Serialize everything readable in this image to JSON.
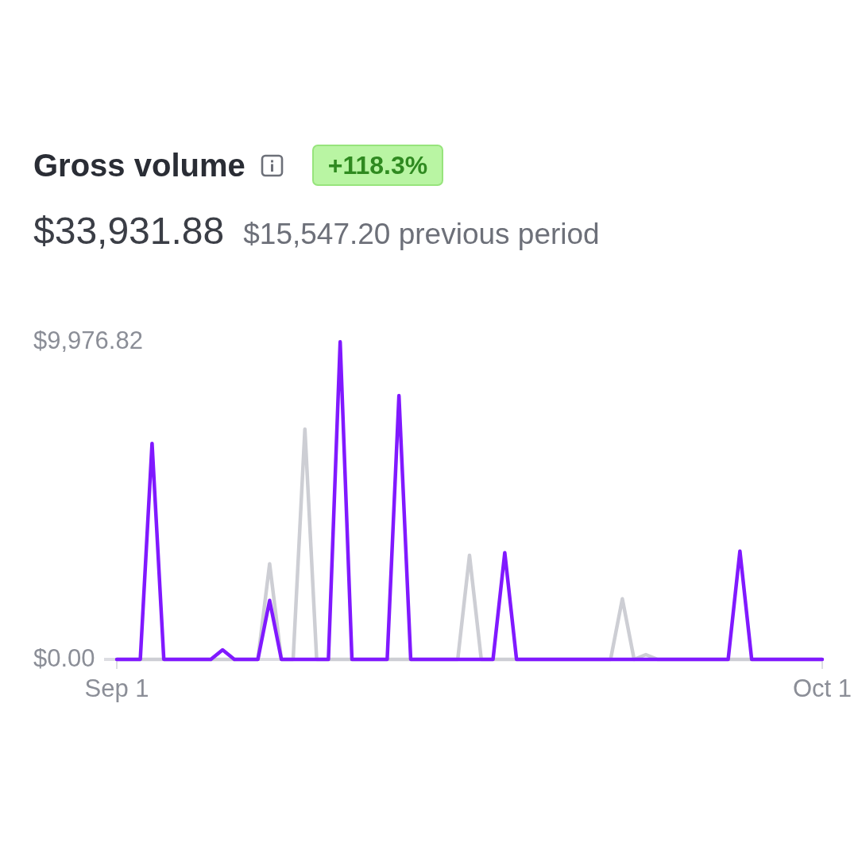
{
  "chart_data": {
    "type": "line",
    "title": "Gross volume",
    "subtitle": "$33,931.88",
    "annotations": [
      "+118.3%",
      "$15,547.20 previous period"
    ],
    "categories": [
      "Sep 1",
      null,
      null,
      null,
      null,
      null,
      null,
      null,
      null,
      null,
      null,
      null,
      null,
      null,
      null,
      null,
      null,
      null,
      null,
      null,
      null,
      null,
      null,
      null,
      null,
      null,
      null,
      null,
      null,
      null,
      null,
      null,
      null,
      null,
      null,
      null,
      null,
      null,
      null,
      null,
      null,
      null,
      null,
      null,
      null,
      null,
      null,
      null,
      null,
      null,
      null,
      null,
      null,
      null,
      null,
      null,
      null,
      null,
      null,
      null,
      "Oct 1"
    ],
    "series": [
      {
        "color": "#8019ff",
        "values": [
          0,
          0,
          0,
          6780,
          0,
          0,
          0,
          0,
          0,
          300,
          0,
          0,
          0,
          1850,
          0,
          0,
          0,
          0,
          0,
          9970,
          0,
          0,
          0,
          0,
          8280,
          0,
          0,
          0,
          0,
          0,
          0,
          0,
          0,
          3350,
          0,
          0,
          0,
          0,
          0,
          0,
          0,
          0,
          0,
          0,
          0,
          0,
          0,
          0,
          0,
          0,
          0,
          0,
          0,
          3400,
          0,
          0,
          0,
          0,
          0,
          0,
          0
        ]
      },
      {
        "color": "#cdced4",
        "values": [
          0,
          0,
          0,
          0,
          0,
          0,
          0,
          0,
          0,
          0,
          0,
          0,
          0,
          3000,
          0,
          0,
          7230,
          0,
          0,
          0,
          0,
          0,
          0,
          0,
          0,
          0,
          0,
          0,
          0,
          0,
          3270,
          0,
          0,
          0,
          0,
          0,
          0,
          0,
          0,
          0,
          0,
          0,
          0,
          1900,
          0,
          150,
          0,
          0,
          0,
          0,
          0,
          0,
          0,
          0,
          0,
          0,
          0,
          0,
          0,
          0,
          0
        ]
      }
    ],
    "ylim": [
      0,
      9976.82
    ],
    "yticks": [
      {
        "value": 0,
        "label": "$0.00"
      },
      {
        "value": 9976.82,
        "label": "$9,976.82"
      }
    ]
  }
}
